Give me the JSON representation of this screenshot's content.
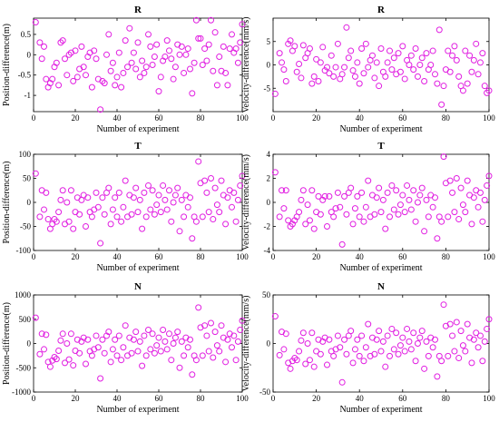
{
  "figure": {
    "marker_color": "#e11ee1",
    "marker": "circle-open"
  },
  "chart_data": [
    {
      "type": "scatter",
      "title": "R",
      "xlabel": "Number of experiment",
      "ylabel": "Position-difference(m)",
      "xlim": [
        0,
        100
      ],
      "ylim": [
        -1.4,
        0.9
      ],
      "xticks": [
        0,
        20,
        40,
        60,
        80,
        100
      ],
      "yticks": [
        -1,
        -0.5,
        0,
        0.5
      ],
      "x": [
        1,
        3,
        4,
        5,
        6,
        7,
        8,
        9,
        10,
        11,
        12,
        13,
        14,
        15,
        16,
        17,
        18,
        19,
        20,
        21,
        22,
        23,
        24,
        25,
        26,
        27,
        28,
        29,
        30,
        31,
        32,
        33,
        34,
        35,
        36,
        37,
        38,
        39,
        40,
        41,
        42,
        43,
        44,
        45,
        46,
        47,
        48,
        49,
        50,
        51,
        52,
        53,
        54,
        55,
        56,
        57,
        58,
        59,
        60,
        61,
        62,
        63,
        64,
        65,
        66,
        67,
        68,
        69,
        70,
        71,
        72,
        73,
        74,
        75,
        76,
        77,
        78,
        79,
        80,
        81,
        82,
        83,
        84,
        85,
        86,
        87,
        88,
        89,
        90,
        91,
        92,
        93,
        94,
        95,
        96,
        97,
        98,
        99,
        100
      ],
      "y": [
        0.8,
        0.3,
        -0.1,
        0.2,
        -0.6,
        -0.8,
        -0.7,
        -0.6,
        -0.3,
        -0.2,
        -0.75,
        0.3,
        0.35,
        -0.1,
        -0.5,
        0.0,
        0.05,
        -0.65,
        0.1,
        -0.55,
        -0.35,
        0.2,
        -0.3,
        -0.5,
        -0.05,
        0.05,
        -0.8,
        0.1,
        -0.1,
        -0.6,
        -1.35,
        -0.65,
        -0.7,
        0.0,
        0.5,
        -0.4,
        -0.2,
        -0.75,
        -0.55,
        0.05,
        -0.8,
        -0.45,
        0.35,
        -0.3,
        0.65,
        -0.2,
        0.05,
        -0.35,
        0.3,
        -0.55,
        -0.15,
        -0.45,
        -0.3,
        0.5,
        0.2,
        -0.25,
        -0.05,
        0.25,
        -0.9,
        -0.55,
        -0.15,
        -0.05,
        0.35,
        0.1,
        -0.1,
        -0.6,
        -0.3,
        0.25,
        0.0,
        0.2,
        -0.45,
        0.0,
        0.15,
        -0.35,
        -0.95,
        -0.2,
        0.85,
        0.4,
        0.4,
        -0.25,
        0.15,
        -0.15,
        0.25,
        0.85,
        -0.4,
        0.55,
        -0.75,
        -0.05,
        -0.4,
        0.2,
        -0.45,
        -0.75,
        0.15,
        0.5,
        0.05,
        0.15,
        -0.2,
        0.3,
        0.75
      ]
    },
    {
      "type": "scatter",
      "title": "R",
      "xlabel": "Number of experiment",
      "ylabel": "Velocity-difference(mm/s)",
      "xlim": [
        0,
        100
      ],
      "ylim": [
        -10,
        10
      ],
      "xticks": [
        0,
        20,
        40,
        60,
        80,
        100
      ],
      "yticks": [
        -5,
        0,
        5
      ],
      "x": [
        1,
        3,
        4,
        5,
        6,
        7,
        8,
        9,
        10,
        11,
        12,
        13,
        14,
        15,
        16,
        17,
        18,
        19,
        20,
        21,
        22,
        23,
        24,
        25,
        26,
        27,
        28,
        29,
        30,
        31,
        32,
        33,
        34,
        35,
        36,
        37,
        38,
        39,
        40,
        41,
        42,
        43,
        44,
        45,
        46,
        47,
        48,
        49,
        50,
        51,
        52,
        53,
        54,
        55,
        56,
        57,
        58,
        59,
        60,
        61,
        62,
        63,
        64,
        65,
        66,
        67,
        68,
        69,
        70,
        71,
        72,
        73,
        74,
        75,
        76,
        77,
        78,
        79,
        80,
        81,
        82,
        83,
        84,
        85,
        86,
        87,
        88,
        89,
        90,
        91,
        92,
        93,
        94,
        95,
        96,
        97,
        98,
        99,
        100
      ],
      "y": [
        -6.2,
        2.5,
        0.5,
        -1,
        -3.5,
        4.5,
        5.2,
        3,
        4,
        -1.5,
        0.2,
        -2.8,
        4.2,
        1.5,
        2.5,
        3.5,
        -4,
        -2.5,
        1.2,
        -3.5,
        0.5,
        3.8,
        -1.2,
        -0.5,
        -1.8,
        2,
        -2.5,
        -0.5,
        4.5,
        -3,
        -2,
        -0.5,
        8,
        1.5,
        3,
        -1.2,
        -2.5,
        0.5,
        -4,
        3.5,
        -1.8,
        4.5,
        -0.5,
        1,
        2,
        -2.8,
        0.5,
        -4.5,
        3.5,
        -1.5,
        -2.5,
        0.5,
        3,
        -1,
        1.5,
        -2,
        2.5,
        -1.5,
        4,
        -3,
        1,
        0,
        2,
        -1,
        3.5,
        -2.5,
        0,
        1.5,
        -3.5,
        2.5,
        -1,
        0,
        3,
        -2,
        -4,
        7.5,
        -8.5,
        -4.5,
        -1,
        3,
        -1.5,
        2,
        4,
        1,
        -2.5,
        -4.5,
        -5.5,
        3,
        -4,
        2,
        -1.5,
        1,
        4.5,
        -2,
        0.5,
        2.5,
        -4.5,
        -6,
        -5.5
      ]
    },
    {
      "type": "scatter",
      "title": "T",
      "xlabel": "Number of experiment",
      "ylabel": "Position-difference(m)",
      "xlim": [
        0,
        100
      ],
      "ylim": [
        -100,
        100
      ],
      "xticks": [
        0,
        20,
        40,
        60,
        80,
        100
      ],
      "yticks": [
        -100,
        -50,
        0,
        50,
        100
      ],
      "x": [
        1,
        3,
        4,
        5,
        6,
        7,
        8,
        9,
        10,
        11,
        12,
        13,
        14,
        15,
        16,
        17,
        18,
        19,
        20,
        21,
        22,
        23,
        24,
        25,
        26,
        27,
        28,
        29,
        30,
        31,
        32,
        33,
        34,
        35,
        36,
        37,
        38,
        39,
        40,
        41,
        42,
        43,
        44,
        45,
        46,
        47,
        48,
        49,
        50,
        51,
        52,
        53,
        54,
        55,
        56,
        57,
        58,
        59,
        60,
        61,
        62,
        63,
        64,
        65,
        66,
        67,
        68,
        69,
        70,
        71,
        72,
        73,
        74,
        75,
        76,
        77,
        78,
        79,
        80,
        81,
        82,
        83,
        84,
        85,
        86,
        87,
        88,
        89,
        90,
        91,
        92,
        93,
        94,
        95,
        96,
        97,
        98,
        99,
        100
      ],
      "y": [
        60,
        -30,
        25,
        -15,
        20,
        -35,
        -55,
        -45,
        -35,
        -40,
        -20,
        5,
        25,
        -45,
        0,
        -40,
        25,
        -55,
        -20,
        10,
        -25,
        5,
        15,
        -50,
        10,
        -20,
        -30,
        -15,
        20,
        -10,
        -85,
        10,
        -25,
        20,
        30,
        -45,
        -15,
        10,
        -30,
        20,
        -40,
        -10,
        45,
        -30,
        15,
        -25,
        10,
        30,
        -20,
        5,
        -55,
        20,
        -30,
        35,
        -15,
        25,
        -25,
        -5,
        15,
        -20,
        35,
        5,
        -15,
        25,
        -40,
        0,
        15,
        30,
        -60,
        5,
        -30,
        15,
        -10,
        10,
        -75,
        -30,
        -40,
        85,
        40,
        -30,
        45,
        20,
        -20,
        50,
        -35,
        30,
        -5,
        -20,
        45,
        15,
        -45,
        10,
        25,
        -10,
        20,
        -40,
        5,
        35,
        55
      ]
    },
    {
      "type": "scatter",
      "title": "T",
      "xlabel": "Number of experiment",
      "ylabel": "Velocity-difference(mm/s)",
      "xlim": [
        0,
        100
      ],
      "ylim": [
        -4,
        4
      ],
      "xticks": [
        0,
        20,
        40,
        60,
        80,
        100
      ],
      "yticks": [
        -4,
        -2,
        0,
        2,
        4
      ],
      "x": [
        1,
        3,
        4,
        5,
        6,
        7,
        8,
        9,
        10,
        11,
        12,
        13,
        14,
        15,
        16,
        17,
        18,
        19,
        20,
        21,
        22,
        23,
        24,
        25,
        26,
        27,
        28,
        29,
        30,
        31,
        32,
        33,
        34,
        35,
        36,
        37,
        38,
        39,
        40,
        41,
        42,
        43,
        44,
        45,
        46,
        47,
        48,
        49,
        50,
        51,
        52,
        53,
        54,
        55,
        56,
        57,
        58,
        59,
        60,
        61,
        62,
        63,
        64,
        65,
        66,
        67,
        68,
        69,
        70,
        71,
        72,
        73,
        74,
        75,
        76,
        77,
        78,
        79,
        80,
        81,
        82,
        83,
        84,
        85,
        86,
        87,
        88,
        89,
        90,
        91,
        92,
        93,
        94,
        95,
        96,
        97,
        98,
        99,
        100
      ],
      "y": [
        2.5,
        -1.2,
        1,
        -0.5,
        1,
        -1.5,
        -2,
        -1.8,
        -1.5,
        -1.2,
        -0.8,
        0.2,
        1,
        -1.8,
        -0.2,
        -1.5,
        1,
        -2.2,
        -0.8,
        0.5,
        -1,
        0.2,
        0.5,
        -2,
        0.5,
        -0.8,
        -1.2,
        -0.5,
        0.8,
        -0.4,
        -3.5,
        0.5,
        -1,
        0.8,
        1.2,
        -1.8,
        -0.5,
        0.5,
        -1.2,
        0.8,
        -1.6,
        -0.4,
        1.8,
        -1.2,
        0.6,
        -1,
        0.4,
        1.2,
        -0.8,
        0.2,
        -2.2,
        0.8,
        -1.2,
        1.4,
        -0.6,
        1,
        -1,
        -0.2,
        0.6,
        -0.8,
        1.4,
        0.2,
        -0.6,
        1,
        -1.6,
        0,
        0.6,
        1.2,
        -2.4,
        0.2,
        -1.2,
        0.6,
        -0.4,
        0.4,
        -3,
        -1.2,
        -1.6,
        3.8,
        1.6,
        -1.2,
        1.8,
        0.8,
        -0.8,
        2,
        -1.4,
        1.2,
        -0.2,
        -0.8,
        1.8,
        0.6,
        -1.8,
        0.4,
        1,
        -0.4,
        0.8,
        -1.6,
        0.2,
        1.4,
        2.2
      ]
    },
    {
      "type": "scatter",
      "title": "N",
      "xlabel": "Number of experiment",
      "ylabel": "Position-difference(m)",
      "xlim": [
        0,
        100
      ],
      "ylim": [
        -1000,
        1000
      ],
      "xticks": [
        0,
        20,
        40,
        60,
        80,
        100
      ],
      "yticks": [
        -1000,
        -500,
        0,
        500,
        1000
      ],
      "x": [
        1,
        3,
        4,
        5,
        6,
        7,
        8,
        9,
        10,
        11,
        12,
        13,
        14,
        15,
        16,
        17,
        18,
        19,
        20,
        21,
        22,
        23,
        24,
        25,
        26,
        27,
        28,
        29,
        30,
        31,
        32,
        33,
        34,
        35,
        36,
        37,
        38,
        39,
        40,
        41,
        42,
        43,
        44,
        45,
        46,
        47,
        48,
        49,
        50,
        51,
        52,
        53,
        54,
        55,
        56,
        57,
        58,
        59,
        60,
        61,
        62,
        63,
        64,
        65,
        66,
        67,
        68,
        69,
        70,
        71,
        72,
        73,
        74,
        75,
        76,
        77,
        78,
        79,
        80,
        81,
        82,
        83,
        84,
        85,
        86,
        87,
        88,
        89,
        90,
        91,
        92,
        93,
        94,
        95,
        96,
        97,
        98,
        99,
        100
      ],
      "y": [
        530,
        -220,
        200,
        -120,
        180,
        -380,
        -480,
        -350,
        -280,
        -320,
        -150,
        60,
        200,
        -400,
        0,
        -330,
        200,
        -450,
        -150,
        80,
        -200,
        40,
        120,
        -420,
        80,
        -160,
        -250,
        -120,
        160,
        -80,
        -720,
        80,
        -200,
        160,
        240,
        -380,
        -120,
        80,
        -250,
        160,
        -340,
        -80,
        370,
        -250,
        120,
        -200,
        80,
        240,
        -160,
        40,
        -460,
        160,
        -250,
        280,
        -120,
        200,
        -200,
        -40,
        120,
        -160,
        280,
        40,
        -120,
        200,
        -340,
        0,
        120,
        240,
        -500,
        40,
        -250,
        120,
        -80,
        80,
        -640,
        -250,
        -340,
        740,
        330,
        -250,
        370,
        160,
        -160,
        420,
        -290,
        240,
        -40,
        -160,
        370,
        120,
        -380,
        80,
        200,
        -80,
        160,
        -340,
        40,
        280,
        470
      ]
    },
    {
      "type": "scatter",
      "title": "N",
      "xlabel": "Number of experiment",
      "ylabel": "Velocity-difference(mm/s)",
      "xlim": [
        0,
        100
      ],
      "ylim": [
        -50,
        50
      ],
      "xticks": [
        0,
        20,
        40,
        60,
        80,
        100
      ],
      "yticks": [
        -50,
        0,
        50
      ],
      "x": [
        1,
        3,
        4,
        5,
        6,
        7,
        8,
        9,
        10,
        11,
        12,
        13,
        14,
        15,
        16,
        17,
        18,
        19,
        20,
        21,
        22,
        23,
        24,
        25,
        26,
        27,
        28,
        29,
        30,
        31,
        32,
        33,
        34,
        35,
        36,
        37,
        38,
        39,
        40,
        41,
        42,
        43,
        44,
        45,
        46,
        47,
        48,
        49,
        50,
        51,
        52,
        53,
        54,
        55,
        56,
        57,
        58,
        59,
        60,
        61,
        62,
        63,
        64,
        65,
        66,
        67,
        68,
        69,
        70,
        71,
        72,
        73,
        74,
        75,
        76,
        77,
        78,
        79,
        80,
        81,
        82,
        83,
        84,
        85,
        86,
        87,
        88,
        89,
        90,
        91,
        92,
        93,
        94,
        95,
        96,
        97,
        98,
        99,
        100
      ],
      "y": [
        28,
        -12,
        12,
        -6,
        10,
        -20,
        -26,
        -18,
        -15,
        -17,
        -8,
        3,
        11,
        -21,
        0,
        -17,
        11,
        -24,
        -8,
        4,
        -11,
        2,
        6,
        -22,
        4,
        -8,
        -13,
        -6,
        8,
        -4,
        -40,
        4,
        -11,
        8,
        13,
        -20,
        -6,
        4,
        -13,
        8,
        -18,
        -4,
        20,
        -13,
        6,
        -11,
        4,
        13,
        -8,
        2,
        -24,
        8,
        -13,
        15,
        -6,
        11,
        -11,
        -2,
        6,
        -8,
        15,
        2,
        -6,
        11,
        -18,
        0,
        6,
        13,
        -26,
        2,
        -13,
        6,
        -4,
        4,
        -34,
        -13,
        -18,
        40,
        18,
        -13,
        20,
        8,
        -8,
        22,
        -15,
        13,
        -2,
        -8,
        20,
        6,
        -20,
        4,
        11,
        -4,
        8,
        -18,
        2,
        15,
        25
      ]
    }
  ]
}
